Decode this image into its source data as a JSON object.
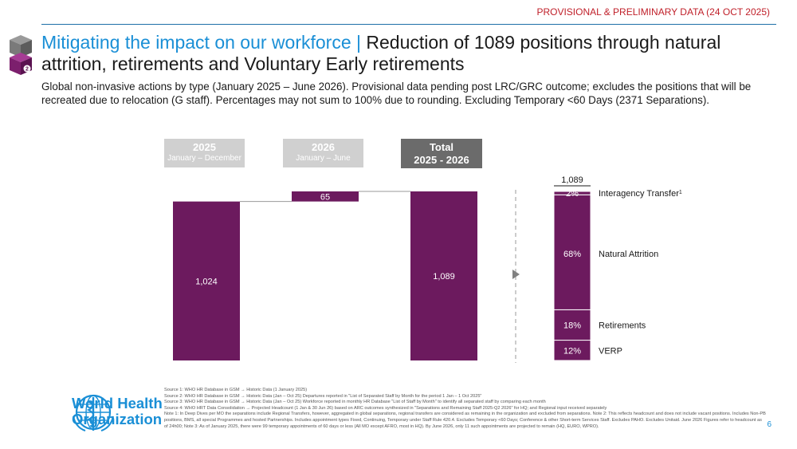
{
  "banner": "PROVISIONAL & PRELIMINARY DATA (24 OCT 2025)",
  "title": {
    "lead": "Mitigating the impact on our workforce |",
    "rest": " Reduction of 1089 positions through natural attrition, retirements and Voluntary Early retirements"
  },
  "subtitle": "Global non-invasive actions by type (January 2025 – June 2026). Provisional data pending post LRC/GRC outcome; excludes the positions that will be recreated due to relocation (G staff). Percentages may not sum to 100% due to rounding. Excluding Temporary <60 Days (2371 Separations).",
  "periods": [
    {
      "year": "2025",
      "range": "January – December"
    },
    {
      "year": "2026",
      "range": "January – June"
    },
    {
      "year": "Total",
      "range": "2025 - 2026"
    }
  ],
  "chart_data": {
    "type": "bar",
    "subtype": "waterfall",
    "categories": [
      "2025",
      "2026",
      "Total 2025 - 2026"
    ],
    "values": [
      1024,
      65,
      1089
    ],
    "labels": [
      "1,024",
      "65",
      "1,089"
    ],
    "ylim": [
      0,
      1089
    ],
    "breakdown": {
      "total": 1089,
      "total_label": "1,089",
      "segments": [
        {
          "name": "Interagency Transfer",
          "sup": "1",
          "percent": 2,
          "label": "2%"
        },
        {
          "name": "Natural Attrition",
          "sup": "",
          "percent": 68,
          "label": "68%"
        },
        {
          "name": "Retirements",
          "sup": "",
          "percent": 18,
          "label": "18%"
        },
        {
          "name": "VERP",
          "sup": "",
          "percent": 12,
          "label": "12%"
        }
      ]
    },
    "colors": {
      "bar": "#6c1a5e",
      "connector": "#9a9a9a",
      "accent": "#1a8fd6"
    }
  },
  "logo": {
    "line1": "World Health",
    "line2": "Organization"
  },
  "sources": [
    "Source 1: WHO HR Database in GSM → Historic Data (1 January 2025)",
    "Source 2: WHO HR Database in GSM → Historic Data (Jan – Oct 25) Departures reported in \"List of Separated Staff by Month for the period 1 Jan – 1 Oct 2025\"",
    "Source 3: WHO HR Database in GSM → Historic Data (Jan – Oct 25) Workforce reported in monthly HR Database \"List of Staff by Month\" to identify all separated staff by comparing each month",
    "Source 4: WHO HRT Data Consolidation → Projected Headcount (1 Jan & 30 Jun 26) based on ARC outcomes synthesized in \"Separations and Remaining Staff 2025-Q2 2026\" for HQ; and Regional input received separately",
    "Note 1: In Deep Dives per MO the separations include Regional Transfers, however, aggregated in global separations, regional transfers are considered as remaining in the organization and excluded from separations. Note 2: This reflects headcount and does not include vacant positions. Includes Non-PB positions, BMS, all special Programmes and hosted Partnerships. Includes appointment types Fixed, Continuing, Temporary under Staff Rule 420.4. Excludes Temporary <60 Days; Conference & other Short-term Services Staff. Excludes PAHO. Excludes Unitaid. June 2026 Figures refer to headcount as of 24h00; Note 3: As of January 2025, there were 99 temporary appointments of 60 days or less (All MO except AFRO, most in HQ). By June 2026, only 11 such appointments are projected to remain (HQ, EURO, WPRO)."
  ],
  "page_number": "6"
}
